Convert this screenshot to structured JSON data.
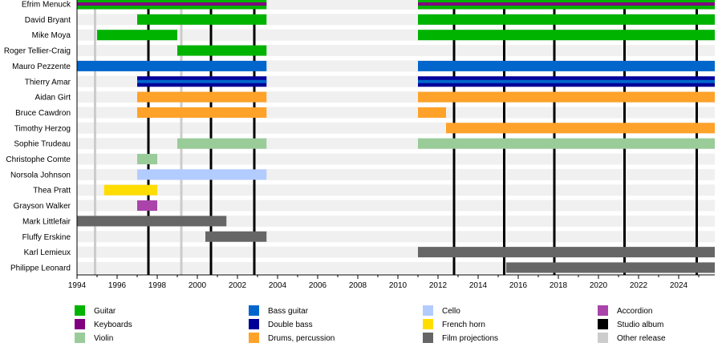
{
  "chart_data": {
    "type": "timeline",
    "x_range": [
      1994,
      2025.8
    ],
    "x_ticks": [
      "1994",
      "1996",
      "1998",
      "2000",
      "2002",
      "2004",
      "2006",
      "2008",
      "2010",
      "2012",
      "2014",
      "2016",
      "2018",
      "2020",
      "2022",
      "2024"
    ],
    "grid": false,
    "legend_placement": "bottom",
    "colors": {
      "Guitar": "#00b300",
      "Keyboards": "#800080",
      "Violin": "#99cc99",
      "Bass guitar": "#0066cc",
      "Double bass": "#000099",
      "Drums, percussion": "#ffa229",
      "Cello": "#b3ccff",
      "French horn": "#ffdd00",
      "Film projections": "#666666",
      "Accordion": "#aa44aa",
      "Studio album": "#000000",
      "Other release": "#cccccc"
    },
    "legend": [
      "Guitar",
      "Keyboards",
      "Violin",
      "Bass guitar",
      "Double bass",
      "Drums, percussion",
      "Cello",
      "French horn",
      "Film projections",
      "Accordion",
      "Studio album",
      "Other release"
    ],
    "members": [
      {
        "name": "Efrim Menuck",
        "spans": [
          {
            "start": 1994,
            "end": 2003.45,
            "instrument": "Guitar",
            "stripe": "Keyboards"
          },
          {
            "start": 2011,
            "end": 2025.8,
            "instrument": "Guitar",
            "stripe": "Keyboards"
          }
        ]
      },
      {
        "name": "David Bryant",
        "spans": [
          {
            "start": 1997,
            "end": 2003.45,
            "instrument": "Guitar"
          },
          {
            "start": 2011,
            "end": 2025.8,
            "instrument": "Guitar"
          }
        ]
      },
      {
        "name": "Mike Moya",
        "spans": [
          {
            "start": 1995,
            "end": 1999,
            "instrument": "Guitar"
          },
          {
            "start": 2011,
            "end": 2025.8,
            "instrument": "Guitar"
          }
        ]
      },
      {
        "name": "Roger Tellier-Craig",
        "spans": [
          {
            "start": 1999,
            "end": 2003.45,
            "instrument": "Guitar"
          }
        ]
      },
      {
        "name": "Mauro Pezzente",
        "spans": [
          {
            "start": 1994,
            "end": 2003.45,
            "instrument": "Bass guitar"
          },
          {
            "start": 2011,
            "end": 2025.8,
            "instrument": "Bass guitar"
          }
        ]
      },
      {
        "name": "Thierry Amar",
        "spans": [
          {
            "start": 1997,
            "end": 2003.45,
            "instrument": "Double bass",
            "stripe": "Bass guitar"
          },
          {
            "start": 2011,
            "end": 2025.8,
            "instrument": "Double bass",
            "stripe": "Bass guitar"
          }
        ]
      },
      {
        "name": "Aidan Girt",
        "spans": [
          {
            "start": 1997,
            "end": 2003.45,
            "instrument": "Drums, percussion"
          },
          {
            "start": 2011,
            "end": 2025.8,
            "instrument": "Drums, percussion"
          }
        ]
      },
      {
        "name": "Bruce Cawdron",
        "spans": [
          {
            "start": 1997,
            "end": 2003.45,
            "instrument": "Drums, percussion"
          },
          {
            "start": 2011,
            "end": 2012.4,
            "instrument": "Drums, percussion"
          }
        ]
      },
      {
        "name": "Timothy Herzog",
        "spans": [
          {
            "start": 2012.4,
            "end": 2025.8,
            "instrument": "Drums, percussion"
          }
        ]
      },
      {
        "name": "Sophie Trudeau",
        "spans": [
          {
            "start": 1999,
            "end": 2003.45,
            "instrument": "Violin"
          },
          {
            "start": 2011,
            "end": 2025.8,
            "instrument": "Violin"
          }
        ]
      },
      {
        "name": "Christophe Comte",
        "spans": [
          {
            "start": 1997,
            "end": 1998,
            "instrument": "Violin"
          }
        ]
      },
      {
        "name": "Norsola Johnson",
        "spans": [
          {
            "start": 1997,
            "end": 2003.45,
            "instrument": "Cello"
          }
        ]
      },
      {
        "name": "Thea Pratt",
        "spans": [
          {
            "start": 1995.35,
            "end": 1998,
            "instrument": "French horn"
          }
        ]
      },
      {
        "name": "Grayson Walker",
        "spans": [
          {
            "start": 1997,
            "end": 1998,
            "instrument": "Accordion"
          }
        ]
      },
      {
        "name": "Mark Littlefair",
        "spans": [
          {
            "start": 1994,
            "end": 2001.45,
            "instrument": "Film projections"
          }
        ]
      },
      {
        "name": "Fluffy Erskine",
        "spans": [
          {
            "start": 2000.4,
            "end": 2003.45,
            "instrument": "Film projections"
          }
        ]
      },
      {
        "name": "Karl Lemieux",
        "spans": [
          {
            "start": 2011,
            "end": 2025.8,
            "instrument": "Film projections"
          }
        ]
      },
      {
        "name": "Philippe Leonard",
        "spans": [
          {
            "start": 2015.4,
            "end": 2025.8,
            "instrument": "Film projections"
          }
        ]
      }
    ],
    "studio_albums": [
      1997.56,
      2000.68,
      2002.84,
      2012.8,
      2015.3,
      2017.8,
      2021.3,
      2024.9
    ],
    "other_releases": [
      1994.9,
      1999.2
    ]
  }
}
